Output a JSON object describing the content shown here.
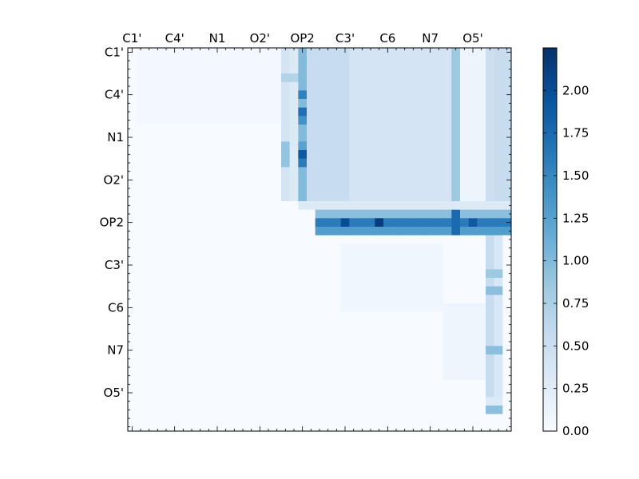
{
  "chart_data": {
    "type": "heatmap",
    "title": "",
    "xlabel": "",
    "ylabel": "",
    "grid": false,
    "colormap": "Blues",
    "colorbar": {
      "vmin": 0.0,
      "vmax": 2.25,
      "ticks": [
        0.0,
        0.25,
        0.5,
        0.75,
        1.0,
        1.25,
        1.5,
        1.75,
        2.0
      ],
      "tick_labels": [
        "0.00",
        "0.25",
        "0.50",
        "0.75",
        "1.00",
        "1.25",
        "1.50",
        "1.75",
        "2.00"
      ]
    },
    "matrix_size": 45,
    "x_tick_labels": [
      {
        "index": 0,
        "label": "C1'"
      },
      {
        "index": 5,
        "label": "C4'"
      },
      {
        "index": 10,
        "label": "N1"
      },
      {
        "index": 15,
        "label": "O2'"
      },
      {
        "index": 20,
        "label": "OP2"
      },
      {
        "index": 25,
        "label": "C3'"
      },
      {
        "index": 30,
        "label": "C6"
      },
      {
        "index": 35,
        "label": "N7"
      },
      {
        "index": 40,
        "label": "O5'"
      }
    ],
    "y_tick_labels": [
      {
        "index": 0,
        "label": "C1'"
      },
      {
        "index": 5,
        "label": "C4'"
      },
      {
        "index": 10,
        "label": "N1"
      },
      {
        "index": 15,
        "label": "O2'"
      },
      {
        "index": 20,
        "label": "OP2"
      },
      {
        "index": 25,
        "label": "C3'"
      },
      {
        "index": 30,
        "label": "C6"
      },
      {
        "index": 35,
        "label": "N7"
      },
      {
        "index": 40,
        "label": "O5'"
      }
    ],
    "background_value": 0.0,
    "regions": [
      {
        "rows": [
          0,
          8
        ],
        "cols": [
          1,
          18
        ],
        "value": 0.05
      },
      {
        "rows": [
          0,
          0
        ],
        "cols": [
          19,
          44
        ],
        "value": 0.5
      },
      {
        "rows": [
          0,
          17
        ],
        "cols": [
          22,
          44
        ],
        "value": 0.55
      },
      {
        "rows": [
          0,
          17
        ],
        "cols": [
          26,
          37
        ],
        "value": 0.4
      },
      {
        "rows": [
          0,
          17
        ],
        "cols": [
          38,
          38
        ],
        "value": 0.85
      },
      {
        "rows": [
          0,
          17
        ],
        "cols": [
          39,
          41
        ],
        "value": 0.12
      },
      {
        "rows": [
          0,
          17
        ],
        "cols": [
          42,
          42
        ],
        "value": 0.5
      },
      {
        "rows": [
          0,
          17
        ],
        "cols": [
          18,
          18
        ],
        "value": 0.4
      },
      {
        "rows": [
          0,
          17
        ],
        "cols": [
          19,
          19
        ],
        "value": 0.3
      },
      {
        "rows": [
          0,
          17
        ],
        "cols": [
          20,
          20
        ],
        "value": 1.0
      },
      {
        "rows": [
          0,
          17
        ],
        "cols": [
          21,
          21
        ],
        "value": 0.55
      },
      {
        "rows": [
          3,
          3
        ],
        "cols": [
          18,
          19
        ],
        "value": 0.7
      },
      {
        "rows": [
          5,
          5
        ],
        "cols": [
          20,
          20
        ],
        "value": 1.55
      },
      {
        "rows": [
          7,
          7
        ],
        "cols": [
          20,
          20
        ],
        "value": 1.7
      },
      {
        "rows": [
          8,
          8
        ],
        "cols": [
          20,
          20
        ],
        "value": 1.4
      },
      {
        "rows": [
          11,
          11
        ],
        "cols": [
          20,
          20
        ],
        "value": 1.25
      },
      {
        "rows": [
          12,
          12
        ],
        "cols": [
          20,
          20
        ],
        "value": 1.9
      },
      {
        "rows": [
          13,
          13
        ],
        "cols": [
          20,
          20
        ],
        "value": 1.6
      },
      {
        "rows": [
          11,
          13
        ],
        "cols": [
          18,
          18
        ],
        "value": 0.9
      },
      {
        "rows": [
          18,
          18
        ],
        "cols": [
          20,
          44
        ],
        "value": 0.3
      },
      {
        "rows": [
          19,
          19
        ],
        "cols": [
          22,
          44
        ],
        "value": 0.95
      },
      {
        "rows": [
          20,
          20
        ],
        "cols": [
          22,
          44
        ],
        "value": 1.6
      },
      {
        "rows": [
          21,
          21
        ],
        "cols": [
          22,
          44
        ],
        "value": 1.3
      },
      {
        "rows": [
          20,
          20
        ],
        "cols": [
          25,
          25
        ],
        "value": 2.0
      },
      {
        "rows": [
          20,
          20
        ],
        "cols": [
          29,
          29
        ],
        "value": 2.15
      },
      {
        "rows": [
          20,
          20
        ],
        "cols": [
          38,
          38
        ],
        "value": 2.1
      },
      {
        "rows": [
          20,
          20
        ],
        "cols": [
          40,
          40
        ],
        "value": 1.9
      },
      {
        "rows": [
          19,
          21
        ],
        "cols": [
          38,
          38
        ],
        "value": 1.75
      },
      {
        "rows": [
          22,
          42
        ],
        "cols": [
          42,
          42
        ],
        "value": 0.55
      },
      {
        "rows": [
          22,
          42
        ],
        "cols": [
          43,
          43
        ],
        "value": 0.35
      },
      {
        "rows": [
          26,
          26
        ],
        "cols": [
          42,
          43
        ],
        "value": 0.85
      },
      {
        "rows": [
          28,
          28
        ],
        "cols": [
          42,
          43
        ],
        "value": 0.95
      },
      {
        "rows": [
          35,
          35
        ],
        "cols": [
          42,
          43
        ],
        "value": 0.95
      },
      {
        "rows": [
          41,
          41
        ],
        "cols": [
          42,
          43
        ],
        "value": 0.3
      },
      {
        "rows": [
          42,
          42
        ],
        "cols": [
          42,
          43
        ],
        "value": 0.95
      },
      {
        "rows": [
          23,
          30
        ],
        "cols": [
          25,
          36
        ],
        "value": 0.08
      },
      {
        "rows": [
          30,
          38
        ],
        "cols": [
          37,
          41
        ],
        "value": 0.1
      }
    ]
  }
}
